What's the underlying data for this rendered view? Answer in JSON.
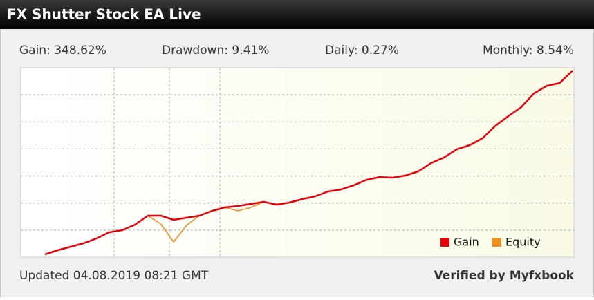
{
  "header": {
    "title": "FX Shutter Stock EA Live"
  },
  "stats": [
    "Gain: 348.62%",
    "Drawdown: 9.41%",
    "Daily: 0.27%",
    "Monthly: 8.54%"
  ],
  "chart_data": {
    "type": "line",
    "categories": [
      null,
      null,
      null,
      null,
      null,
      null,
      null,
      null,
      null,
      null,
      null,
      null,
      null,
      null,
      null,
      null,
      null,
      null,
      null,
      null,
      null,
      null,
      null,
      null,
      null,
      null,
      null,
      null,
      null,
      null,
      null,
      null,
      null,
      null,
      null,
      null,
      null,
      null,
      null,
      null,
      null,
      null
    ],
    "series": [
      {
        "name": "Gain",
        "color": "#e8000b",
        "values": [
          5.1,
          12.8,
          19.2,
          25.5,
          34.5,
          46,
          49.8,
          60,
          76.6,
          76.6,
          69,
          72.8,
          76.6,
          85.6,
          92,
          94.5,
          98.3,
          102.2,
          97.1,
          100.9,
          107.3,
          112.4,
          121.3,
          125.1,
          132.8,
          143,
          148.1,
          146.9,
          150.7,
          158.4,
          173.7,
          183.9,
          199.2,
          206.9,
          219.6,
          242.6,
          260.5,
          277.1,
          302.6,
          316.7,
          321.8,
          344.8
        ]
      },
      {
        "name": "Equity",
        "color": "#f0901e",
        "values": [
          5.1,
          12.8,
          19.2,
          25.5,
          34.5,
          46,
          49.8,
          60,
          76.6,
          61.3,
          28.1,
          58.7,
          76.6,
          85.6,
          92,
          85.6,
          92,
          102.2,
          97.1,
          100.9,
          107.3,
          112.4,
          121.3,
          125.1,
          132.8,
          143,
          148.1,
          146.9,
          150.7,
          158.4,
          173.7,
          183.9,
          199.2,
          206.9,
          219.6,
          242.6,
          260.5,
          277.1,
          302.6,
          316.7,
          321.8,
          344.8
        ]
      }
    ],
    "ylim": [
      0,
      350
    ],
    "yticks": [
      50,
      100,
      150,
      200,
      250,
      300
    ],
    "grid": true
  },
  "footer": {
    "updated": "Updated 04.08.2019 08:21 GMT",
    "verified": "Verified by Myfxbook"
  }
}
